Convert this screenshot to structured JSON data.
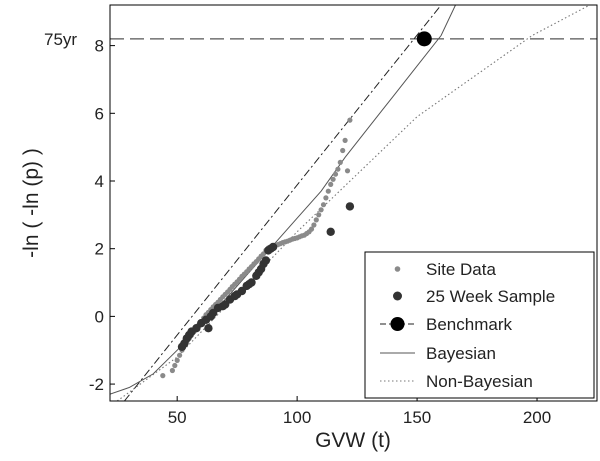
{
  "chart_data": {
    "type": "scatter",
    "title": "",
    "xlabel": "GVW (t)",
    "ylabel": "-ln ( -ln (p) )",
    "xlim": [
      22,
      225
    ],
    "ylim": [
      -2.5,
      9.2
    ],
    "xticks": [
      50,
      100,
      150,
      200
    ],
    "yticks": [
      -2,
      0,
      2,
      4,
      6,
      8
    ],
    "grid": false,
    "legend_position": "bottom-right",
    "reference_line": {
      "y": 8.2,
      "label": "75yr",
      "style": "dashed"
    },
    "series": [
      {
        "name": "Site Data",
        "kind": "scatter",
        "color": "#8a8a8a",
        "points": [
          [
            44,
            -1.75
          ],
          [
            48,
            -1.6
          ],
          [
            49,
            -1.45
          ],
          [
            50,
            -1.3
          ],
          [
            51,
            -1.15
          ],
          [
            52,
            -1.0
          ],
          [
            53,
            -0.85
          ],
          [
            54,
            -0.75
          ],
          [
            55,
            -0.65
          ],
          [
            56,
            -0.55
          ],
          [
            57,
            -0.45
          ],
          [
            58,
            -0.35
          ],
          [
            59,
            -0.25
          ],
          [
            60,
            -0.15
          ],
          [
            61,
            -0.05
          ],
          [
            62,
            0.05
          ],
          [
            63,
            0.12
          ],
          [
            64,
            0.2
          ],
          [
            65,
            0.28
          ],
          [
            66,
            0.35
          ],
          [
            67,
            0.42
          ],
          [
            68,
            0.5
          ],
          [
            69,
            0.58
          ],
          [
            70,
            0.65
          ],
          [
            71,
            0.72
          ],
          [
            72,
            0.8
          ],
          [
            73,
            0.88
          ],
          [
            74,
            0.95
          ],
          [
            75,
            1.02
          ],
          [
            76,
            1.1
          ],
          [
            77,
            1.18
          ],
          [
            78,
            1.25
          ],
          [
            79,
            1.32
          ],
          [
            80,
            1.4
          ],
          [
            81,
            1.47
          ],
          [
            82,
            1.55
          ],
          [
            83,
            1.62
          ],
          [
            84,
            1.7
          ],
          [
            85,
            1.78
          ],
          [
            86,
            1.85
          ],
          [
            87,
            1.95
          ],
          [
            88,
            2.02
          ],
          [
            89,
            2.05
          ],
          [
            90,
            2.08
          ],
          [
            91,
            2.1
          ],
          [
            92,
            2.12
          ],
          [
            93,
            2.15
          ],
          [
            94,
            2.18
          ],
          [
            95,
            2.2
          ],
          [
            96,
            2.22
          ],
          [
            97,
            2.25
          ],
          [
            98,
            2.28
          ],
          [
            99,
            2.3
          ],
          [
            100,
            2.32
          ],
          [
            101,
            2.35
          ],
          [
            102,
            2.38
          ],
          [
            103,
            2.4
          ],
          [
            104,
            2.45
          ],
          [
            105,
            2.5
          ],
          [
            106,
            2.58
          ],
          [
            107,
            2.7
          ],
          [
            108,
            2.85
          ],
          [
            109,
            3.0
          ],
          [
            110,
            3.15
          ],
          [
            111,
            3.3
          ],
          [
            112,
            3.5
          ],
          [
            113,
            3.7
          ],
          [
            114,
            3.9
          ],
          [
            115,
            4.05
          ],
          [
            116,
            4.2
          ],
          [
            117,
            4.35
          ],
          [
            118,
            4.55
          ],
          [
            119,
            4.9
          ],
          [
            120,
            5.2
          ],
          [
            122,
            5.8
          ],
          [
            121,
            4.3
          ]
        ]
      },
      {
        "name": "25 Week Sample",
        "kind": "scatter",
        "color": "#333333",
        "points": [
          [
            52,
            -0.9
          ],
          [
            53,
            -0.8
          ],
          [
            54,
            -0.65
          ],
          [
            55,
            -0.55
          ],
          [
            56,
            -0.45
          ],
          [
            58,
            -0.35
          ],
          [
            60,
            -0.2
          ],
          [
            62,
            -0.1
          ],
          [
            63,
            -0.35
          ],
          [
            64,
            0.0
          ],
          [
            65,
            0.1
          ],
          [
            67,
            0.25
          ],
          [
            69,
            0.3
          ],
          [
            70,
            0.35
          ],
          [
            72,
            0.5
          ],
          [
            74,
            0.6
          ],
          [
            75,
            0.65
          ],
          [
            77,
            0.75
          ],
          [
            79,
            0.9
          ],
          [
            80,
            0.95
          ],
          [
            81,
            1.0
          ],
          [
            83,
            1.2
          ],
          [
            84,
            1.3
          ],
          [
            85,
            1.4
          ],
          [
            86,
            1.55
          ],
          [
            87,
            1.65
          ],
          [
            88,
            1.95
          ],
          [
            89,
            2.0
          ],
          [
            90,
            2.05
          ],
          [
            114,
            2.5
          ],
          [
            122,
            3.25
          ]
        ]
      },
      {
        "name": "Benchmark",
        "kind": "line",
        "dash": "dashdot",
        "color": "#222222",
        "marker": {
          "x": 153,
          "y": 8.2
        },
        "points": [
          [
            28,
            -2.5
          ],
          [
            160,
            9.2
          ]
        ]
      },
      {
        "name": "Bayesian",
        "kind": "line",
        "dash": "solid",
        "color": "#555555",
        "points": [
          [
            22,
            -2.3
          ],
          [
            30,
            -2.1
          ],
          [
            40,
            -1.7
          ],
          [
            50,
            -1.0
          ],
          [
            60,
            -0.3
          ],
          [
            70,
            0.5
          ],
          [
            80,
            1.3
          ],
          [
            90,
            2.1
          ],
          [
            100,
            2.9
          ],
          [
            110,
            3.7
          ],
          [
            120,
            4.7
          ],
          [
            130,
            5.6
          ],
          [
            140,
            6.5
          ],
          [
            150,
            7.4
          ],
          [
            160,
            8.3
          ],
          [
            166,
            9.2
          ]
        ]
      },
      {
        "name": "Non-Bayesian",
        "kind": "line",
        "dash": "dotted",
        "color": "#777777",
        "points": [
          [
            25,
            -2.5
          ],
          [
            50,
            -1.2
          ],
          [
            100,
            2.5
          ],
          [
            150,
            5.9
          ],
          [
            198,
            8.3
          ],
          [
            222,
            9.2
          ]
        ]
      }
    ]
  }
}
